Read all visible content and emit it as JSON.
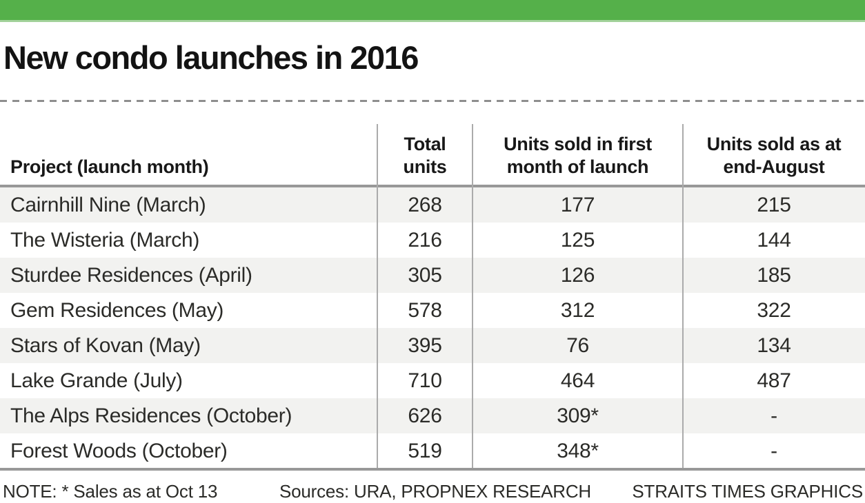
{
  "title": "New condo launches in 2016",
  "accent_color": "#55b04a",
  "rule_color": "#989898",
  "stripe_color": "#f2f2f0",
  "table": {
    "headers": [
      {
        "line1": "Project (launch month)",
        "line2": ""
      },
      {
        "line1": "Total",
        "line2": "units"
      },
      {
        "line1": "Units sold in first",
        "line2": "month of launch"
      },
      {
        "line1": "Units sold as at",
        "line2": "end-August"
      }
    ],
    "rows": [
      {
        "project": "Cairnhill Nine (March)",
        "total": "268",
        "first_month": "177",
        "end_august": "215"
      },
      {
        "project": "The Wisteria (March)",
        "total": "216",
        "first_month": "125",
        "end_august": "144"
      },
      {
        "project": "Sturdee Residences (April)",
        "total": "305",
        "first_month": "126",
        "end_august": "185"
      },
      {
        "project": "Gem Residences (May)",
        "total": "578",
        "first_month": "312",
        "end_august": "322"
      },
      {
        "project": "Stars of Kovan (May)",
        "total": "395",
        "first_month": "76",
        "end_august": "134"
      },
      {
        "project": "Lake Grande (July)",
        "total": "710",
        "first_month": "464",
        "end_august": "487"
      },
      {
        "project": "The Alps Residences (October)",
        "total": "626",
        "first_month": "309*",
        "end_august": "-"
      },
      {
        "project": "Forest Woods (October)",
        "total": "519",
        "first_month": "348*",
        "end_august": "-"
      }
    ]
  },
  "footer": {
    "note": "NOTE: * Sales as at Oct 13",
    "sources": "Sources: URA, PROPNEX RESEARCH",
    "credit": "STRAITS TIMES GRAPHICS"
  },
  "chart_data": {
    "type": "table",
    "title": "New condo launches in 2016",
    "columns": [
      "Project (launch month)",
      "Total units",
      "Units sold in first month of launch",
      "Units sold as at end-August"
    ],
    "rows": [
      [
        "Cairnhill Nine (March)",
        268,
        177,
        215
      ],
      [
        "The Wisteria (March)",
        216,
        125,
        144
      ],
      [
        "Sturdee Residences (April)",
        305,
        126,
        185
      ],
      [
        "Gem Residences (May)",
        578,
        312,
        322
      ],
      [
        "Stars of Kovan (May)",
        395,
        76,
        134
      ],
      [
        "Lake Grande (July)",
        710,
        464,
        487
      ],
      [
        "The Alps Residences (October)",
        626,
        "309*",
        null
      ],
      [
        "Forest Woods (October)",
        519,
        "348*",
        null
      ]
    ],
    "note": "* Sales as at Oct 13",
    "sources": "URA, PROPNEX RESEARCH",
    "credit": "STRAITS TIMES GRAPHICS"
  }
}
